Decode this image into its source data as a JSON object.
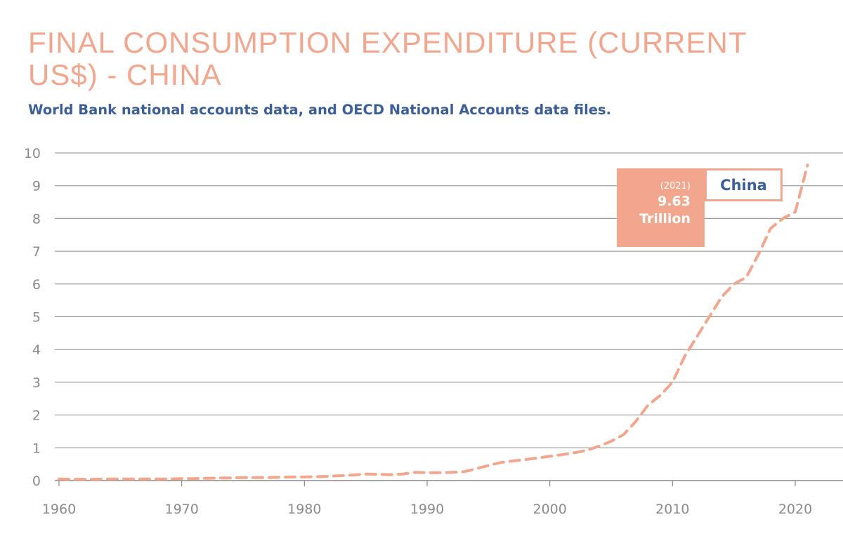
{
  "title": "FINAL CONSUMPTION EXPENDITURE (CURRENT US$) - CHINA",
  "subtitle": "World Bank national accounts data, and OECD National Accounts data files.",
  "colors": {
    "title": "#f2a68e",
    "line": "#f2a68e",
    "subtitle": "#3b5f96",
    "grid": "#8a8a8a",
    "axis_text": "#8a8a8a"
  },
  "callout": {
    "year": "(2021)",
    "value": "9.63",
    "unit": "Trillion",
    "series": "China"
  },
  "chart_data": {
    "type": "line",
    "title": "FINAL CONSUMPTION EXPENDITURE (CURRENT US$) - CHINA",
    "subtitle": "World Bank national accounts data, and OECD National Accounts data files.",
    "xlabel": "",
    "ylabel": "",
    "unit": "Trillion US$",
    "xlim": [
      1960,
      2021
    ],
    "ylim": [
      0,
      10
    ],
    "x_ticks": [
      1960,
      1970,
      1980,
      1990,
      2000,
      2010,
      2020
    ],
    "y_ticks": [
      0,
      1,
      2,
      3,
      4,
      5,
      6,
      7,
      8,
      9,
      10
    ],
    "grid": true,
    "line_style": "dashed",
    "series": [
      {
        "name": "China",
        "x": [
          1960,
          1961,
          1962,
          1963,
          1964,
          1965,
          1966,
          1967,
          1968,
          1969,
          1970,
          1971,
          1972,
          1973,
          1974,
          1975,
          1976,
          1977,
          1978,
          1979,
          1980,
          1981,
          1982,
          1983,
          1984,
          1985,
          1986,
          1987,
          1988,
          1989,
          1990,
          1991,
          1992,
          1993,
          1994,
          1995,
          1996,
          1997,
          1998,
          1999,
          2000,
          2001,
          2002,
          2003,
          2004,
          2005,
          2006,
          2007,
          2008,
          2009,
          2010,
          2011,
          2012,
          2013,
          2014,
          2015,
          2016,
          2017,
          2018,
          2019,
          2020,
          2021
        ],
        "values": [
          0.05,
          0.04,
          0.04,
          0.04,
          0.05,
          0.05,
          0.05,
          0.05,
          0.05,
          0.05,
          0.06,
          0.06,
          0.07,
          0.08,
          0.08,
          0.09,
          0.09,
          0.09,
          0.1,
          0.11,
          0.11,
          0.12,
          0.13,
          0.15,
          0.17,
          0.2,
          0.19,
          0.18,
          0.2,
          0.25,
          0.24,
          0.24,
          0.25,
          0.27,
          0.36,
          0.46,
          0.55,
          0.6,
          0.64,
          0.69,
          0.74,
          0.79,
          0.85,
          0.92,
          1.05,
          1.2,
          1.4,
          1.8,
          2.3,
          2.6,
          3.0,
          3.8,
          4.4,
          5.0,
          5.6,
          6.0,
          6.2,
          6.9,
          7.7,
          8.0,
          8.2,
          9.63
        ]
      }
    ],
    "annotation": {
      "x": 2021,
      "year_label": "(2021)",
      "value_label": "9.63",
      "unit_label": "Trillion",
      "series_label": "China"
    }
  }
}
